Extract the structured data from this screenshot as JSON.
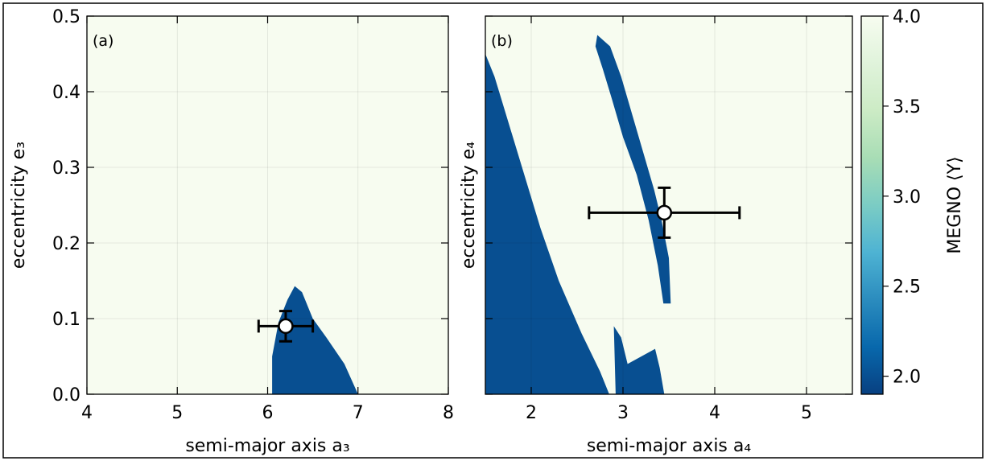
{
  "chart_data": [
    {
      "type": "heatmap",
      "panel_label": "(a)",
      "xlabel": "semi-major axis a₃",
      "ylabel": "eccentricity e₃",
      "xlim": [
        4,
        8
      ],
      "ylim": [
        0.0,
        0.5
      ],
      "xticks": [
        4,
        5,
        6,
        7,
        8
      ],
      "xtick_labels": [
        "4",
        "5",
        "6",
        "7",
        "8"
      ],
      "yticks": [
        0.0,
        0.1,
        0.2,
        0.3,
        0.4,
        0.5
      ],
      "ytick_labels": [
        "0.0",
        "0.1",
        "0.2",
        "0.3",
        "0.4",
        "0.5"
      ],
      "grid": true,
      "background_megno": 4.0,
      "stable_regions": [
        {
          "megno": 2.0,
          "polygon": [
            [
              6.05,
              0.0
            ],
            [
              6.05,
              0.05
            ],
            [
              6.12,
              0.095
            ],
            [
              6.22,
              0.125
            ],
            [
              6.3,
              0.143
            ],
            [
              6.38,
              0.135
            ],
            [
              6.5,
              0.1
            ],
            [
              6.65,
              0.075
            ],
            [
              6.85,
              0.04
            ],
            [
              7.0,
              0.0
            ]
          ]
        }
      ],
      "point": {
        "x": 6.2,
        "y": 0.09,
        "xerr": 0.3,
        "yerr": 0.02
      }
    },
    {
      "type": "heatmap",
      "panel_label": "(b)",
      "xlabel": "semi-major axis a₄",
      "ylabel": "eccentricity e₄",
      "xlim": [
        1.5,
        5.5
      ],
      "ylim": [
        0.0,
        0.5
      ],
      "xticks": [
        2,
        3,
        4,
        5
      ],
      "xtick_labels": [
        "2",
        "3",
        "4",
        "5"
      ],
      "yticks": [
        0.0,
        0.1,
        0.2,
        0.3,
        0.4,
        0.5
      ],
      "ytick_labels": [],
      "grid": true,
      "background_megno": 4.0,
      "stable_regions": [
        {
          "megno": 2.0,
          "polygon": [
            [
              2.72,
              0.475
            ],
            [
              2.86,
              0.46
            ],
            [
              2.98,
              0.42
            ],
            [
              3.1,
              0.37
            ],
            [
              3.22,
              0.32
            ],
            [
              3.34,
              0.27
            ],
            [
              3.42,
              0.23
            ],
            [
              3.5,
              0.18
            ],
            [
              3.52,
              0.12
            ],
            [
              3.44,
              0.12
            ],
            [
              3.38,
              0.17
            ],
            [
              3.28,
              0.23
            ],
            [
              3.15,
              0.29
            ],
            [
              3.0,
              0.34
            ],
            [
              2.88,
              0.39
            ],
            [
              2.78,
              0.43
            ],
            [
              2.7,
              0.46
            ]
          ]
        },
        {
          "megno": 2.0,
          "polygon": [
            [
              1.5,
              0.45
            ],
            [
              1.6,
              0.42
            ],
            [
              1.75,
              0.36
            ],
            [
              1.9,
              0.3
            ],
            [
              2.1,
              0.22
            ],
            [
              2.3,
              0.15
            ],
            [
              2.55,
              0.08
            ],
            [
              2.75,
              0.03
            ],
            [
              2.85,
              0.0
            ],
            [
              1.5,
              0.0
            ]
          ]
        },
        {
          "megno": 2.0,
          "polygon": [
            [
              2.9,
              0.09
            ],
            [
              2.98,
              0.075
            ],
            [
              3.05,
              0.04
            ],
            [
              3.2,
              0.05
            ],
            [
              3.35,
              0.06
            ],
            [
              3.4,
              0.035
            ],
            [
              3.45,
              0.0
            ],
            [
              2.92,
              0.0
            ]
          ]
        }
      ],
      "point": {
        "x": 3.45,
        "y": 0.24,
        "xerr": 0.82,
        "yerr": 0.033
      }
    }
  ],
  "colorbar": {
    "label": "MEGNO ⟨Y⟩",
    "range": [
      1.9,
      4.0
    ],
    "ticks": [
      2.0,
      2.5,
      3.0,
      3.5,
      4.0
    ],
    "tick_labels": [
      "2.0",
      "2.5",
      "3.0",
      "3.5",
      "4.0"
    ],
    "colors": [
      "#084081",
      "#0868ac",
      "#2b8cbe",
      "#4eb3d3",
      "#7bccc4",
      "#a8ddb5",
      "#ccebc5",
      "#e0f3db",
      "#f7fcf0"
    ]
  }
}
